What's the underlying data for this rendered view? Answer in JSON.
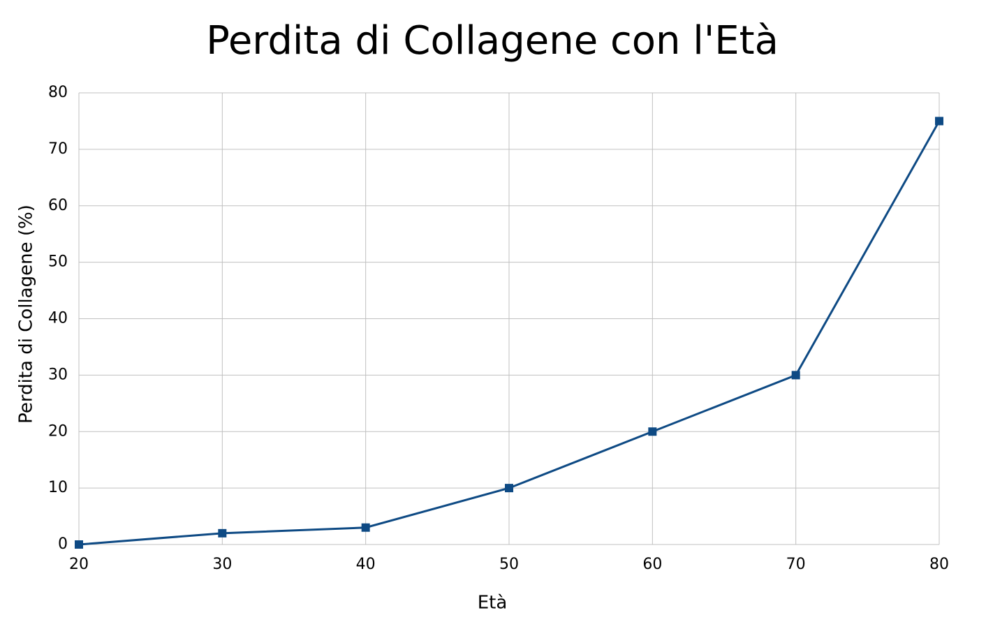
{
  "chart_data": {
    "type": "line",
    "title": "Perdita di Collagene con l'Età",
    "x_label": "Età",
    "y_label": "Perdita di Collagene (%)",
    "x": [
      20,
      30,
      40,
      50,
      60,
      70,
      80
    ],
    "values": [
      0,
      2,
      3,
      10,
      20,
      30,
      75
    ],
    "color": "#0e4a84",
    "xlim": [
      20,
      80
    ],
    "xticks": [
      20,
      30,
      40,
      50,
      60,
      70,
      80
    ],
    "ylim": [
      0,
      80
    ],
    "yticks": [
      0,
      10,
      20,
      30,
      40,
      50,
      60,
      70,
      80
    ],
    "grid": true
  }
}
